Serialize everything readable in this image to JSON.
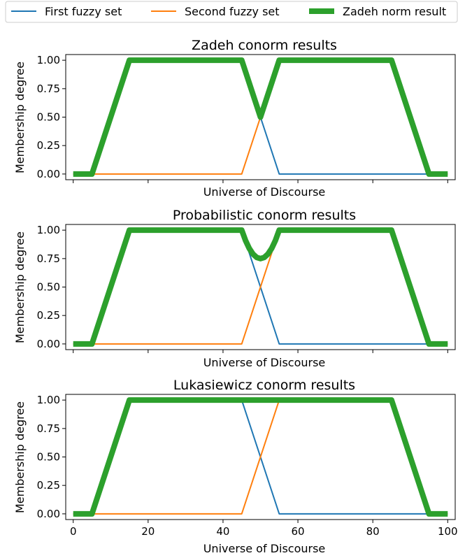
{
  "legend": {
    "items": [
      {
        "label": "First fuzzy set",
        "color": "#1f77b4"
      },
      {
        "label": "Second fuzzy set",
        "color": "#ff7f0e"
      },
      {
        "label": "Zadeh norm result",
        "color": "#2ca02c"
      }
    ]
  },
  "chart_data": [
    {
      "type": "line",
      "title": "Zadeh conorm results",
      "xlabel": "Universe of Discourse",
      "ylabel": "Membership degree",
      "xlim": [
        -2,
        102
      ],
      "ylim": [
        -0.05,
        1.05
      ],
      "yticks": [
        "0.00",
        "0.25",
        "0.50",
        "0.75",
        "1.00"
      ],
      "xticks": [],
      "series": [
        {
          "name": "First fuzzy set",
          "x": [
            0,
            5,
            15,
            45,
            55,
            100
          ],
          "y": [
            0,
            0,
            1,
            1,
            0,
            0
          ]
        },
        {
          "name": "Second fuzzy set",
          "x": [
            0,
            45,
            55,
            85,
            95,
            100
          ],
          "y": [
            0,
            0,
            1,
            1,
            0,
            0
          ]
        },
        {
          "name": "Zadeh norm result",
          "x": [
            0,
            5,
            15,
            45,
            50,
            55,
            85,
            95,
            100
          ],
          "y": [
            0,
            0,
            1,
            1,
            0.5,
            1,
            1,
            0,
            0
          ]
        }
      ]
    },
    {
      "type": "line",
      "title": "Probabilistic conorm results",
      "xlabel": "Universe of Discourse",
      "ylabel": "Membership degree",
      "xlim": [
        -2,
        102
      ],
      "ylim": [
        -0.05,
        1.05
      ],
      "yticks": [
        "0.00",
        "0.25",
        "0.50",
        "0.75",
        "1.00"
      ],
      "xticks": [],
      "series": [
        {
          "name": "First fuzzy set",
          "x": [
            0,
            5,
            15,
            45,
            55,
            100
          ],
          "y": [
            0,
            0,
            1,
            1,
            0,
            0
          ]
        },
        {
          "name": "Second fuzzy set",
          "x": [
            0,
            45,
            55,
            85,
            95,
            100
          ],
          "y": [
            0,
            0,
            1,
            1,
            0,
            0
          ]
        },
        {
          "name": "Zadeh norm result",
          "x": [
            0,
            5,
            15,
            45,
            46,
            47,
            48,
            49,
            50,
            51,
            52,
            53,
            54,
            55,
            85,
            95,
            100
          ],
          "y": [
            0,
            0,
            1,
            1,
            0.91,
            0.84,
            0.79,
            0.76,
            0.75,
            0.76,
            0.79,
            0.84,
            0.91,
            1,
            1,
            0,
            0
          ]
        }
      ]
    },
    {
      "type": "line",
      "title": "Lukasiewicz conorm results",
      "xlabel": "Universe of Discourse",
      "ylabel": "Membership degree",
      "xlim": [
        -2,
        102
      ],
      "ylim": [
        -0.05,
        1.05
      ],
      "yticks": [
        "0.00",
        "0.25",
        "0.50",
        "0.75",
        "1.00"
      ],
      "xticks": [
        "0",
        "20",
        "40",
        "60",
        "80",
        "100"
      ],
      "series": [
        {
          "name": "First fuzzy set",
          "x": [
            0,
            5,
            15,
            45,
            55,
            100
          ],
          "y": [
            0,
            0,
            1,
            1,
            0,
            0
          ]
        },
        {
          "name": "Second fuzzy set",
          "x": [
            0,
            45,
            55,
            85,
            95,
            100
          ],
          "y": [
            0,
            0,
            1,
            1,
            0,
            0
          ]
        },
        {
          "name": "Zadeh norm result",
          "x": [
            0,
            5,
            15,
            85,
            95,
            100
          ],
          "y": [
            0,
            0,
            1,
            1,
            0,
            0
          ]
        }
      ]
    }
  ]
}
